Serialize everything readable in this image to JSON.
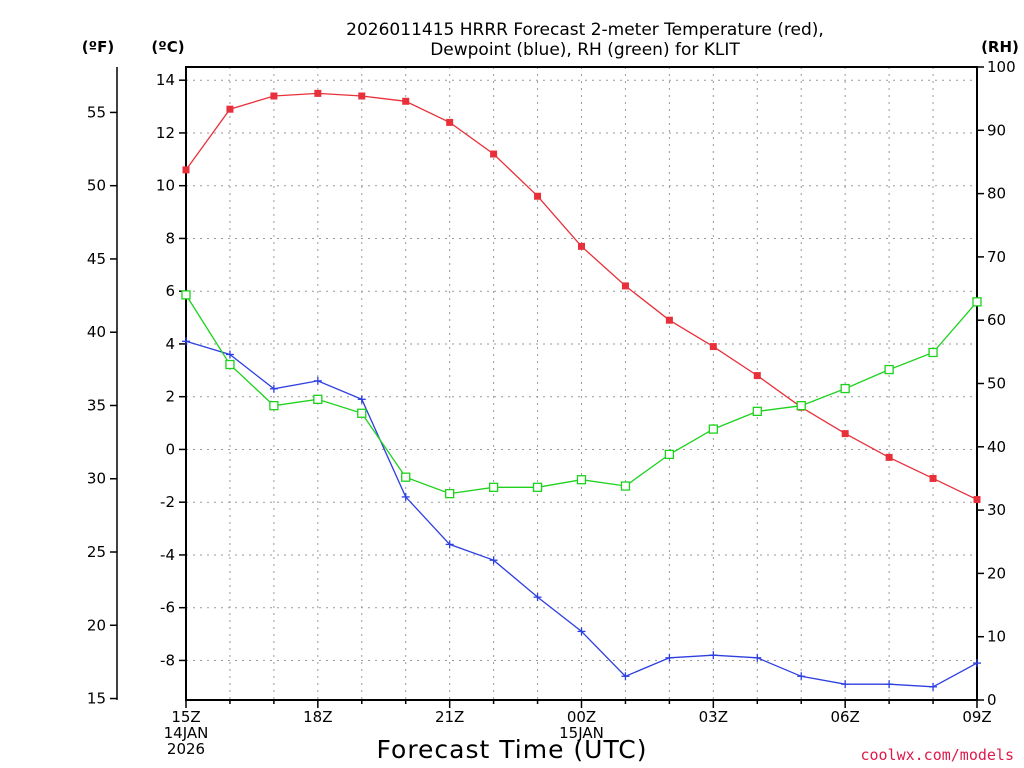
{
  "chart_data": {
    "type": "line",
    "title": [
      "2026011415 HRRR Forecast 2-meter Temperature (red),",
      "Dewpoint (blue), RH (green) for KLIT"
    ],
    "xlabel": "Forecast Time (UTC)",
    "credit": "coolwx.com/models",
    "units": {
      "fahrenheit": "(ºF)",
      "celsius": "(ºC)",
      "rh": "(RH)"
    },
    "x": [
      "15Z",
      "16Z",
      "17Z",
      "18Z",
      "19Z",
      "20Z",
      "21Z",
      "22Z",
      "23Z",
      "00Z",
      "01Z",
      "02Z",
      "03Z",
      "04Z",
      "05Z",
      "06Z",
      "07Z",
      "08Z",
      "09Z"
    ],
    "x_tick_labels": [
      {
        "index": 0,
        "lines": [
          "15Z",
          "14JAN",
          "2026"
        ]
      },
      {
        "index": 3,
        "lines": [
          "18Z"
        ]
      },
      {
        "index": 6,
        "lines": [
          "21Z"
        ]
      },
      {
        "index": 9,
        "lines": [
          "00Z",
          "15JAN"
        ]
      },
      {
        "index": 12,
        "lines": [
          "03Z"
        ]
      },
      {
        "index": 15,
        "lines": [
          "06Z"
        ]
      },
      {
        "index": 18,
        "lines": [
          "09Z"
        ]
      }
    ],
    "y_celsius": {
      "ylim": [
        -9.5,
        14.5
      ],
      "ticks": [
        -8,
        -6,
        -4,
        -2,
        0,
        2,
        4,
        6,
        8,
        10,
        12,
        14
      ]
    },
    "y_fahrenheit": {
      "ticks": [
        15,
        20,
        25,
        30,
        35,
        40,
        45,
        50,
        55
      ]
    },
    "y_rh": {
      "ylim": [
        0,
        100
      ],
      "ticks": [
        0,
        10,
        20,
        30,
        40,
        50,
        60,
        70,
        80,
        90,
        100
      ]
    },
    "grid": true,
    "series": [
      {
        "name": "2-meter Temperature",
        "axis": "celsius",
        "color": "#e8303a",
        "marker": "filled-square",
        "values": [
          10.6,
          12.9,
          13.4,
          13.5,
          13.4,
          13.2,
          12.4,
          11.2,
          9.6,
          7.7,
          6.2,
          4.9,
          3.9,
          2.8,
          1.6,
          0.6,
          -0.3,
          -1.1,
          -1.9
        ]
      },
      {
        "name": "Dewpoint",
        "axis": "celsius",
        "color": "#2d3fe0",
        "marker": "plus",
        "values": [
          4.1,
          3.6,
          2.3,
          2.6,
          1.9,
          -1.8,
          -3.6,
          -4.2,
          -5.6,
          -6.9,
          -8.6,
          -7.9,
          -7.8,
          -7.9,
          -8.6,
          -8.9,
          -8.9,
          -9.0,
          -8.1
        ]
      },
      {
        "name": "RH",
        "axis": "rh",
        "color": "#1cd21c",
        "marker": "open-square",
        "values": [
          64,
          53,
          46.5,
          47.5,
          45.3,
          35.2,
          32.6,
          33.6,
          33.6,
          34.8,
          33.8,
          38.8,
          42.8,
          45.6,
          46.5,
          49.2,
          52.2,
          54.9,
          62.9
        ]
      }
    ]
  }
}
